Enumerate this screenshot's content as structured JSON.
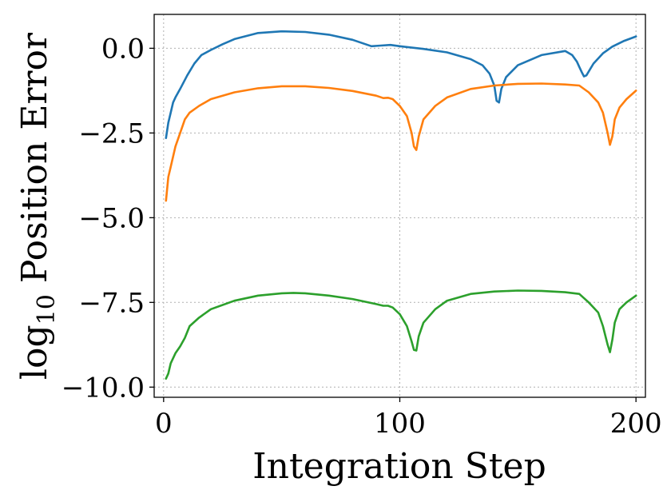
{
  "chart_data": {
    "type": "line",
    "title": "",
    "xlabel": "Integration Step",
    "ylabel_main": "log",
    "ylabel_sub": "10",
    "ylabel_rest": " Position Error",
    "xlim": [
      -4,
      204
    ],
    "ylim": [
      -10.3,
      1.0
    ],
    "xticks": [
      0,
      100,
      200
    ],
    "xtick_labels": [
      "0",
      "100",
      "200"
    ],
    "yticks": [
      0.0,
      -2.5,
      -5.0,
      -7.5,
      -10.0
    ],
    "ytick_labels": [
      "0.0",
      "−2.5",
      "−5.0",
      "−7.5",
      "−10.0"
    ],
    "grid": true,
    "series": [
      {
        "color": "#1f77b4",
        "x": [
          1,
          2,
          3,
          4,
          5,
          7,
          10,
          13,
          16,
          20,
          25,
          30,
          40,
          50,
          60,
          70,
          80,
          88,
          92,
          96,
          100,
          110,
          120,
          130,
          135,
          138,
          140,
          141,
          142,
          143,
          145,
          150,
          160,
          170,
          173,
          175,
          176,
          177,
          178,
          179,
          182,
          186,
          190,
          195,
          200
        ],
        "y": [
          -2.65,
          -2.2,
          -1.9,
          -1.6,
          -1.45,
          -1.2,
          -0.8,
          -0.45,
          -0.2,
          -0.05,
          0.12,
          0.27,
          0.45,
          0.5,
          0.48,
          0.4,
          0.25,
          0.06,
          0.08,
          0.1,
          0.06,
          -0.02,
          -0.12,
          -0.32,
          -0.5,
          -0.75,
          -1.1,
          -1.55,
          -1.6,
          -1.2,
          -0.85,
          -0.5,
          -0.2,
          -0.08,
          -0.2,
          -0.4,
          -0.55,
          -0.7,
          -0.83,
          -0.8,
          -0.45,
          -0.15,
          0.05,
          0.22,
          0.35
        ]
      },
      {
        "color": "#ff7f0e",
        "x": [
          1,
          2,
          3,
          5,
          7,
          9,
          11,
          15,
          20,
          30,
          40,
          50,
          60,
          70,
          80,
          90,
          93,
          95,
          97,
          100,
          103,
          105,
          106,
          107,
          108,
          110,
          115,
          120,
          130,
          140,
          150,
          160,
          170,
          176,
          180,
          184,
          186,
          188,
          189,
          190,
          191,
          193,
          196,
          200
        ],
        "y": [
          -4.5,
          -3.8,
          -3.5,
          -2.9,
          -2.5,
          -2.1,
          -1.9,
          -1.7,
          -1.5,
          -1.3,
          -1.18,
          -1.12,
          -1.12,
          -1.17,
          -1.26,
          -1.4,
          -1.47,
          -1.46,
          -1.5,
          -1.7,
          -2.0,
          -2.5,
          -2.9,
          -3.0,
          -2.6,
          -2.1,
          -1.7,
          -1.45,
          -1.2,
          -1.1,
          -1.05,
          -1.04,
          -1.07,
          -1.1,
          -1.3,
          -1.6,
          -1.9,
          -2.5,
          -2.85,
          -2.6,
          -2.1,
          -1.75,
          -1.5,
          -1.25
        ]
      },
      {
        "color": "#2ca02c",
        "x": [
          1,
          2,
          3,
          5,
          7,
          9,
          11,
          15,
          20,
          30,
          40,
          50,
          55,
          60,
          70,
          80,
          90,
          93,
          95,
          97,
          100,
          103,
          105,
          106,
          107,
          108,
          110,
          115,
          120,
          130,
          140,
          150,
          160,
          170,
          176,
          180,
          184,
          186,
          188,
          189,
          190,
          191,
          193,
          196,
          200
        ],
        "y": [
          -9.75,
          -9.6,
          -9.3,
          -9.0,
          -8.8,
          -8.55,
          -8.2,
          -7.95,
          -7.7,
          -7.45,
          -7.3,
          -7.23,
          -7.22,
          -7.23,
          -7.3,
          -7.4,
          -7.55,
          -7.6,
          -7.6,
          -7.65,
          -7.85,
          -8.2,
          -8.65,
          -8.9,
          -8.92,
          -8.5,
          -8.1,
          -7.7,
          -7.45,
          -7.25,
          -7.18,
          -7.15,
          -7.16,
          -7.2,
          -7.25,
          -7.5,
          -7.8,
          -8.2,
          -8.75,
          -8.97,
          -8.6,
          -8.1,
          -7.7,
          -7.5,
          -7.3
        ]
      }
    ]
  }
}
